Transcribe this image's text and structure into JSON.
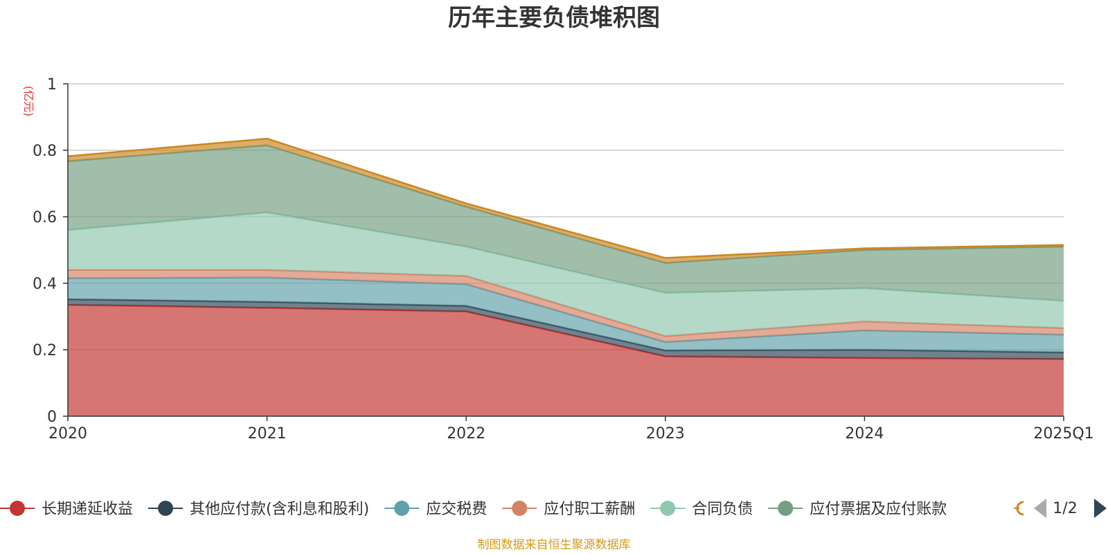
{
  "chart_data": {
    "type": "area",
    "stacked": true,
    "title": "历年主要负债堆积图",
    "unit_label": "(亿元)",
    "categories": [
      "2020",
      "2021",
      "2022",
      "2023",
      "2024",
      "2025Q1"
    ],
    "ylim": [
      0,
      1
    ],
    "yticks": [
      0,
      0.2,
      0.4,
      0.6,
      0.8,
      1
    ],
    "ytick_labels": [
      "0",
      "0.2",
      "0.4",
      "0.6",
      "0.8",
      "1"
    ],
    "grid": true,
    "legend_position": "bottom",
    "series": [
      {
        "name": "长期递延收益",
        "color": "#c23531",
        "values": [
          0.335,
          0.326,
          0.315,
          0.18,
          0.175,
          0.172
        ]
      },
      {
        "name": "其他应付款(含利息和股利)",
        "color": "#2f4554",
        "values": [
          0.017,
          0.018,
          0.017,
          0.018,
          0.025,
          0.02
        ]
      },
      {
        "name": "应交税费",
        "color": "#61a0a8",
        "values": [
          0.063,
          0.073,
          0.065,
          0.025,
          0.058,
          0.053
        ]
      },
      {
        "name": "应付职工薪酬",
        "color": "#d48265",
        "values": [
          0.025,
          0.023,
          0.025,
          0.018,
          0.027,
          0.02
        ]
      },
      {
        "name": "合同负债",
        "color": "#91c7ae",
        "values": [
          0.12,
          0.173,
          0.088,
          0.13,
          0.1,
          0.082
        ]
      },
      {
        "name": "应付票据及应付账款",
        "color": "#749f83",
        "values": [
          0.207,
          0.202,
          0.12,
          0.09,
          0.115,
          0.163
        ]
      },
      {
        "name": "",
        "color": "#ca8622",
        "values": [
          0.015,
          0.02,
          0.01,
          0.015,
          0.005,
          0.005
        ]
      }
    ]
  },
  "legend": {
    "page_indicator": "1/2"
  },
  "footer": {
    "source_text": "制图数据来自恒生聚源数据库"
  }
}
